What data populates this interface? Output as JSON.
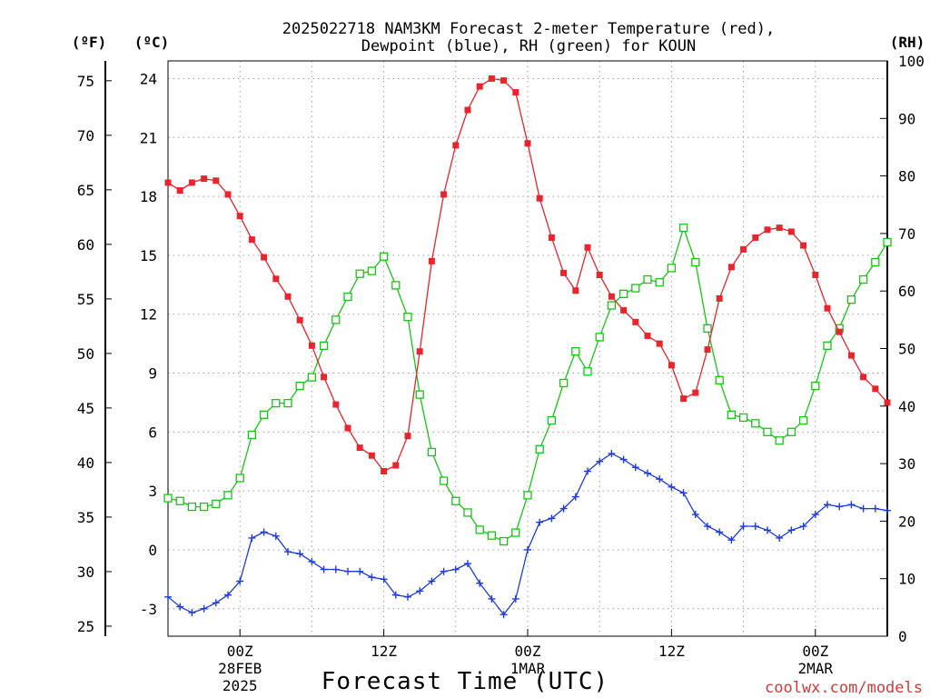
{
  "chart_data": {
    "type": "line",
    "title_line1": "2025022718 NAM3KM Forecast 2-meter Temperature (red),",
    "title_line2": "Dewpoint (blue), RH (green) for KOUN",
    "units": {
      "fahrenheit": "(ºF)",
      "celsius": "(ºC)",
      "rh": "(RH)"
    },
    "xlabel": "Forecast Time (UTC)",
    "credit": "coolwx.com/models",
    "x_ticks": [
      {
        "hour": 6,
        "line1": "00Z",
        "line2": "28FEB",
        "line3": "2025"
      },
      {
        "hour": 18,
        "line1": "12Z",
        "line2": "",
        "line3": ""
      },
      {
        "hour": 30,
        "line1": "00Z",
        "line2": "1MAR",
        "line3": ""
      },
      {
        "hour": 42,
        "line1": "12Z",
        "line2": "",
        "line3": ""
      },
      {
        "hour": 54,
        "line1": "00Z",
        "line2": "2MAR",
        "line3": ""
      }
    ],
    "x_unit": "forecast hour from 2025-02-27 18Z",
    "xlim": [
      0,
      60
    ],
    "celsius_ticks": [
      "-3",
      "0",
      "3",
      "6",
      "9",
      "12",
      "15",
      "18",
      "21",
      "24"
    ],
    "fahrenheit_ticks": [
      "25",
      "30",
      "35",
      "40",
      "45",
      "50",
      "55",
      "60",
      "65",
      "70",
      "75"
    ],
    "rh_ticks": [
      "0",
      "10",
      "20",
      "30",
      "40",
      "50",
      "60",
      "70",
      "80",
      "90",
      "100"
    ],
    "ylim_celsius": [
      -4.4,
      24.9
    ],
    "ylim_rh": [
      0,
      100
    ],
    "grid": true,
    "colors": {
      "temperature": "#e8242c",
      "dewpoint": "#1f3cdb",
      "rh": "#18c418",
      "grid": "#a0a0a0"
    },
    "series": [
      {
        "name": "Temperature",
        "unit": "°C",
        "x": [
          0,
          1,
          2,
          3,
          4,
          5,
          6,
          7,
          8,
          9,
          10,
          11,
          12,
          13,
          14,
          15,
          16,
          17,
          18,
          19,
          20,
          21,
          22,
          23,
          24,
          25,
          26,
          27,
          28,
          29,
          30,
          31,
          32,
          33,
          34,
          35,
          36,
          37,
          38,
          39,
          40,
          41,
          42,
          43,
          44,
          45,
          46,
          47,
          48,
          49,
          50,
          51,
          52,
          53,
          54,
          55,
          56,
          57,
          58,
          59,
          60
        ],
        "values": [
          18.7,
          18.3,
          18.7,
          18.9,
          18.8,
          18.1,
          17.0,
          15.8,
          14.9,
          13.8,
          12.9,
          11.7,
          10.4,
          8.8,
          7.4,
          6.2,
          5.2,
          4.8,
          4.0,
          4.3,
          5.8,
          10.1,
          14.7,
          18.1,
          20.6,
          22.4,
          23.6,
          24.0,
          23.9,
          23.3,
          20.7,
          17.9,
          15.9,
          14.1,
          13.2,
          15.4,
          14.0,
          12.9,
          12.2,
          11.6,
          10.9,
          10.5,
          9.4,
          7.7,
          8.0,
          10.2,
          12.8,
          14.4,
          15.3,
          15.9,
          16.3,
          16.4,
          16.2,
          15.5,
          14.0,
          12.3,
          11.1,
          9.9,
          8.8,
          8.2,
          7.5
        ]
      },
      {
        "name": "Dewpoint",
        "unit": "°C",
        "x": [
          0,
          1,
          2,
          3,
          4,
          5,
          6,
          7,
          8,
          9,
          10,
          11,
          12,
          13,
          14,
          15,
          16,
          17,
          18,
          19,
          20,
          21,
          22,
          23,
          24,
          25,
          26,
          27,
          28,
          29,
          30,
          31,
          32,
          33,
          34,
          35,
          36,
          37,
          38,
          39,
          40,
          41,
          42,
          43,
          44,
          45,
          46,
          47,
          48,
          49,
          50,
          51,
          52,
          53,
          54,
          55,
          56,
          57,
          58,
          59,
          60
        ],
        "values": [
          -2.4,
          -2.9,
          -3.2,
          -3.0,
          -2.7,
          -2.3,
          -1.6,
          0.6,
          0.9,
          0.7,
          -0.1,
          -0.2,
          -0.6,
          -1.0,
          -1.0,
          -1.1,
          -1.1,
          -1.4,
          -1.5,
          -2.3,
          -2.4,
          -2.1,
          -1.6,
          -1.1,
          -1.0,
          -0.7,
          -1.7,
          -2.5,
          -3.3,
          -2.5,
          0.0,
          1.4,
          1.6,
          2.1,
          2.7,
          4.0,
          4.5,
          4.9,
          4.6,
          4.2,
          3.9,
          3.6,
          3.2,
          2.9,
          1.8,
          1.2,
          0.9,
          0.5,
          1.2,
          1.2,
          1.0,
          0.6,
          1.0,
          1.2,
          1.8,
          2.3,
          2.2,
          2.3,
          2.1,
          2.1,
          2.0
        ]
      },
      {
        "name": "RH",
        "unit": "%",
        "x": [
          0,
          1,
          2,
          3,
          4,
          5,
          6,
          7,
          8,
          9,
          10,
          11,
          12,
          13,
          14,
          15,
          16,
          17,
          18,
          19,
          20,
          21,
          22,
          23,
          24,
          25,
          26,
          27,
          28,
          29,
          30,
          31,
          32,
          33,
          34,
          35,
          36,
          37,
          38,
          39,
          40,
          41,
          42,
          43,
          44,
          45,
          46,
          47,
          48,
          49,
          50,
          51,
          52,
          53,
          54,
          55,
          56,
          57,
          58,
          59,
          60
        ],
        "values": [
          24,
          23.5,
          22.5,
          22.5,
          23,
          24.5,
          27.5,
          35,
          38.5,
          40.5,
          40.5,
          43.5,
          45,
          50.5,
          55,
          59,
          63,
          63.5,
          66,
          61,
          55.5,
          42,
          32,
          27,
          23.5,
          21.5,
          18.5,
          17.5,
          16.5,
          18,
          24.5,
          32.5,
          37.5,
          44,
          49.5,
          46,
          52,
          57.5,
          59.5,
          60.5,
          62,
          61.5,
          64,
          71,
          65,
          53.5,
          44.5,
          38.5,
          38,
          37,
          35.5,
          34,
          35.5,
          37.5,
          43.5,
          50.5,
          53.5,
          58.5,
          62,
          65,
          68.5
        ]
      }
    ]
  }
}
